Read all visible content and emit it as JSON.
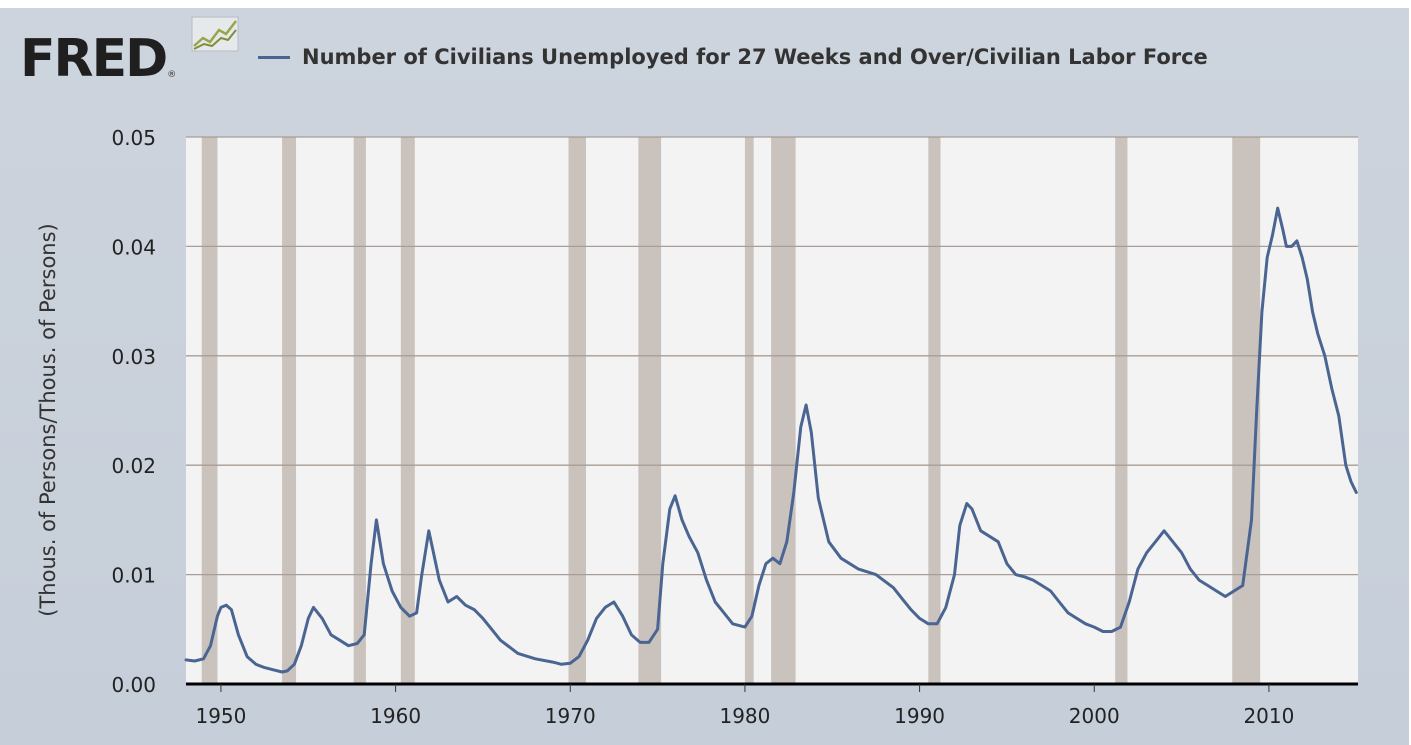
{
  "header": {
    "logo_text": "FRED",
    "logo_reg": "®",
    "logo_icon": "chart-line-icon"
  },
  "colors": {
    "series": "#4a6591",
    "recession": "#c9c2bd",
    "plot_bg": "#f3f3f3",
    "frame_bg": "#cdd4dd"
  },
  "chart_data": {
    "type": "line",
    "title": "",
    "ylabel": "(Thous. of Persons/Thous. of Persons)",
    "xlabel": "",
    "xlim": [
      1948.0,
      2015.1
    ],
    "ylim": [
      0,
      0.05
    ],
    "grid": true,
    "legend_position": "top",
    "yticks": [
      0.0,
      0.01,
      0.02,
      0.03,
      0.04,
      0.05
    ],
    "ytick_labels": [
      "0.00",
      "0.01",
      "0.02",
      "0.03",
      "0.04",
      "0.05"
    ],
    "xticks": [
      1950,
      1960,
      1970,
      1980,
      1990,
      2000,
      2010
    ],
    "xtick_labels": [
      "1950",
      "1960",
      "1970",
      "1980",
      "1990",
      "2000",
      "2010"
    ],
    "recessions": [
      [
        1948.9,
        1949.8
      ],
      [
        1953.5,
        1954.3
      ],
      [
        1957.6,
        1958.3
      ],
      [
        1960.3,
        1961.1
      ],
      [
        1969.9,
        1970.9
      ],
      [
        1973.9,
        1975.2
      ],
      [
        1980.0,
        1980.5
      ],
      [
        1981.5,
        1982.9
      ],
      [
        1990.5,
        1991.2
      ],
      [
        2001.2,
        2001.9
      ],
      [
        2007.9,
        2009.5
      ]
    ],
    "series": [
      {
        "name": "Number of Civilians Unemployed for 27 Weeks and Over/Civilian Labor Force",
        "x": [
          1948.0,
          1948.5,
          1949.0,
          1949.4,
          1949.8,
          1950.0,
          1950.3,
          1950.6,
          1951.0,
          1951.5,
          1952.0,
          1952.5,
          1953.0,
          1953.5,
          1953.8,
          1954.2,
          1954.6,
          1955.0,
          1955.3,
          1955.8,
          1956.3,
          1956.8,
          1957.3,
          1957.8,
          1958.2,
          1958.6,
          1958.9,
          1959.3,
          1959.8,
          1960.3,
          1960.8,
          1961.2,
          1961.5,
          1961.9,
          1962.5,
          1963.0,
          1963.5,
          1964.0,
          1964.5,
          1965.0,
          1965.5,
          1966.0,
          1967.0,
          1968.0,
          1969.0,
          1969.5,
          1970.0,
          1970.5,
          1971.0,
          1971.5,
          1972.0,
          1972.5,
          1973.0,
          1973.5,
          1974.0,
          1974.5,
          1975.0,
          1975.3,
          1975.7,
          1976.0,
          1976.4,
          1976.8,
          1977.3,
          1977.8,
          1978.3,
          1978.8,
          1979.3,
          1980.0,
          1980.4,
          1980.8,
          1981.2,
          1981.6,
          1982.0,
          1982.4,
          1982.8,
          1983.2,
          1983.5,
          1983.8,
          1984.2,
          1984.8,
          1985.5,
          1986.5,
          1987.5,
          1988.5,
          1989.0,
          1989.5,
          1990.0,
          1990.5,
          1991.0,
          1991.5,
          1992.0,
          1992.3,
          1992.7,
          1993.0,
          1993.5,
          1994.0,
          1994.5,
          1995.0,
          1995.5,
          1996.0,
          1996.5,
          1997.0,
          1997.5,
          1998.0,
          1998.5,
          1999.0,
          1999.5,
          2000.0,
          2000.5,
          2001.0,
          2001.5,
          2002.0,
          2002.5,
          2003.0,
          2003.5,
          2004.0,
          2004.5,
          2005.0,
          2005.5,
          2006.0,
          2006.5,
          2007.0,
          2007.5,
          2008.0,
          2008.5,
          2009.0,
          2009.3,
          2009.6,
          2009.9,
          2010.2,
          2010.5,
          2010.8,
          2011.0,
          2011.3,
          2011.6,
          2011.9,
          2012.2,
          2012.5,
          2012.8,
          2013.2,
          2013.6,
          2014.0,
          2014.4,
          2014.7,
          2015.0
        ],
        "values": [
          0.0022,
          0.0021,
          0.0023,
          0.0035,
          0.0062,
          0.007,
          0.0072,
          0.0068,
          0.0045,
          0.0025,
          0.0018,
          0.0015,
          0.0013,
          0.0011,
          0.0012,
          0.0018,
          0.0035,
          0.006,
          0.007,
          0.006,
          0.0045,
          0.004,
          0.0035,
          0.0037,
          0.0045,
          0.011,
          0.015,
          0.011,
          0.0085,
          0.007,
          0.0062,
          0.0065,
          0.01,
          0.014,
          0.0095,
          0.0075,
          0.008,
          0.0072,
          0.0068,
          0.006,
          0.005,
          0.004,
          0.0028,
          0.0023,
          0.002,
          0.0018,
          0.0019,
          0.0025,
          0.004,
          0.006,
          0.007,
          0.0075,
          0.0062,
          0.0045,
          0.0038,
          0.0038,
          0.005,
          0.011,
          0.016,
          0.0172,
          0.015,
          0.0135,
          0.012,
          0.0095,
          0.0075,
          0.0065,
          0.0055,
          0.0052,
          0.0062,
          0.009,
          0.011,
          0.0115,
          0.011,
          0.013,
          0.0175,
          0.0235,
          0.0255,
          0.023,
          0.017,
          0.013,
          0.0115,
          0.0105,
          0.01,
          0.0088,
          0.0078,
          0.0068,
          0.006,
          0.0055,
          0.0055,
          0.007,
          0.01,
          0.0145,
          0.0165,
          0.016,
          0.014,
          0.0135,
          0.013,
          0.011,
          0.01,
          0.0098,
          0.0095,
          0.009,
          0.0085,
          0.0075,
          0.0065,
          0.006,
          0.0055,
          0.0052,
          0.0048,
          0.0048,
          0.0052,
          0.0075,
          0.0105,
          0.012,
          0.013,
          0.014,
          0.013,
          0.012,
          0.0105,
          0.0095,
          0.009,
          0.0085,
          0.008,
          0.0085,
          0.009,
          0.015,
          0.025,
          0.034,
          0.039,
          0.041,
          0.0435,
          0.0415,
          0.04,
          0.04,
          0.0405,
          0.039,
          0.037,
          0.034,
          0.032,
          0.03,
          0.027,
          0.0245,
          0.02,
          0.0185,
          0.0175
        ]
      }
    ]
  }
}
